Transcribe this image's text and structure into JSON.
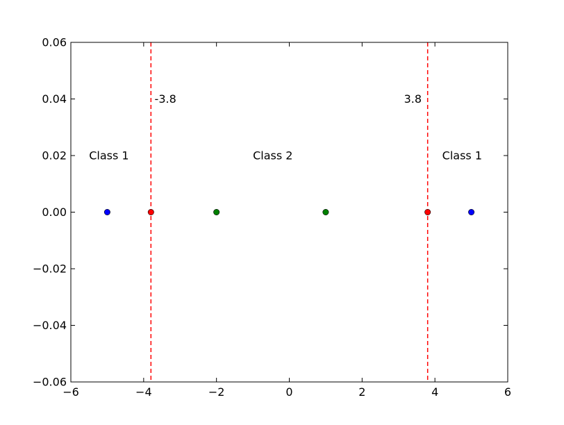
{
  "chart_data": {
    "type": "scatter",
    "title": "",
    "xlabel": "",
    "ylabel": "",
    "xlim": [
      -6,
      6
    ],
    "ylim": [
      -0.06,
      0.06
    ],
    "grid": false,
    "x_ticks": [
      -6,
      -4,
      -2,
      0,
      2,
      4,
      6
    ],
    "x_tick_labels": [
      "−6",
      "−4",
      "−2",
      "0",
      "2",
      "4",
      "6"
    ],
    "y_ticks": [
      -0.06,
      -0.04,
      -0.02,
      0.0,
      0.02,
      0.04,
      0.06
    ],
    "y_tick_labels": [
      "−0.06",
      "−0.04",
      "−0.02",
      "0.00",
      "0.02",
      "0.04",
      "0.06"
    ],
    "series": [
      {
        "color": "#0000ff",
        "x": [
          -5,
          5
        ],
        "y": [
          0,
          0
        ]
      },
      {
        "color": "#008000",
        "x": [
          -2,
          1
        ],
        "y": [
          0,
          0
        ]
      },
      {
        "color": "#ff0000",
        "x": [
          -3.8,
          3.8
        ],
        "y": [
          0,
          0
        ]
      }
    ],
    "vlines": [
      {
        "x": -3.8,
        "color": "#ff0000",
        "style": "dashed"
      },
      {
        "x": 3.8,
        "color": "#ff0000",
        "style": "dashed"
      }
    ],
    "annotations": [
      {
        "text": "-3.8",
        "x": -3.7,
        "y": 0.04
      },
      {
        "text": "3.8",
        "x": 3.15,
        "y": 0.04
      },
      {
        "text": "Class 1",
        "x": -5.5,
        "y": 0.02
      },
      {
        "text": "Class 2",
        "x": -1.0,
        "y": 0.02
      },
      {
        "text": "Class 1",
        "x": 4.2,
        "y": 0.02
      }
    ]
  }
}
